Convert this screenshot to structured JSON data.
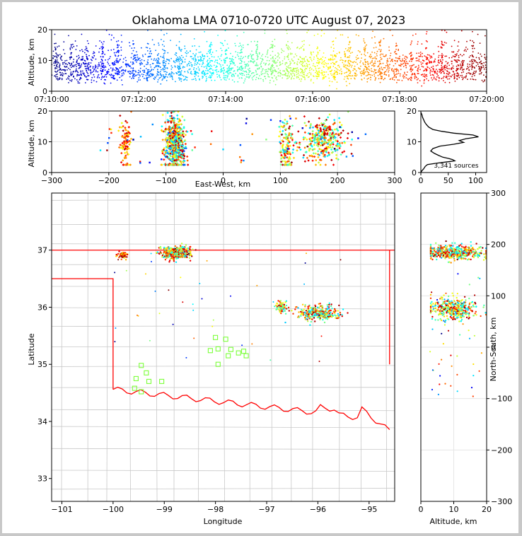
{
  "chart_data": [
    {
      "type": "scatter",
      "panel": "time-altitude",
      "title": "Oklahoma LMA 0710-0720 UTC August 07, 2023",
      "xlabel": "",
      "ylabel": "Altitude, km",
      "xlim": [
        "07:10:00",
        "07:20:00"
      ],
      "ylim": [
        0,
        20
      ],
      "xticks": [
        "07:10:00",
        "07:12:00",
        "07:14:00",
        "07:16:00",
        "07:18:00",
        "07:20:00"
      ],
      "yticks": [
        "0",
        "10",
        "20"
      ],
      "color_encoding": "time (blue → cyan → green → yellow → orange → red → dark red)",
      "point_altitude_range_km": [
        3,
        20
      ],
      "point_altitude_core_km": [
        5,
        14
      ]
    },
    {
      "type": "scatter",
      "panel": "east-west-altitude",
      "xlabel": "East-West, km",
      "ylabel": "Altitude, km",
      "xlim": [
        -300,
        300
      ],
      "ylim": [
        0,
        20
      ],
      "xticks": [
        "−300",
        "−200",
        "−100",
        "0",
        "100",
        "200",
        "300"
      ],
      "yticks": [
        "0",
        "10",
        "20"
      ],
      "grid": true,
      "clusters": [
        {
          "ew_km": -170,
          "alt_km": 10
        },
        {
          "ew_km": -85,
          "alt_km": 9
        },
        {
          "ew_km": 110,
          "alt_km": 8
        },
        {
          "ew_km": 175,
          "alt_km": 11
        }
      ]
    },
    {
      "type": "line",
      "panel": "altitude-histogram",
      "xlim": [
        0,
        120
      ],
      "ylim": [
        0,
        20
      ],
      "xticks": [
        "0",
        "50",
        "100"
      ],
      "yticks": [
        "0",
        "10",
        "20"
      ],
      "annotation": "3,341 sources",
      "profile": [
        {
          "alt": 0.0,
          "count": 0
        },
        {
          "alt": 0.6,
          "count": 2
        },
        {
          "alt": 1.2,
          "count": 5
        },
        {
          "alt": 2.0,
          "count": 8
        },
        {
          "alt": 2.6,
          "count": 12
        },
        {
          "alt": 3.0,
          "count": 28
        },
        {
          "alt": 3.4,
          "count": 45
        },
        {
          "alt": 3.8,
          "count": 62
        },
        {
          "alt": 4.2,
          "count": 58
        },
        {
          "alt": 4.6,
          "count": 50
        },
        {
          "alt": 5.0,
          "count": 40
        },
        {
          "alt": 5.6,
          "count": 32
        },
        {
          "alt": 6.2,
          "count": 25
        },
        {
          "alt": 7.0,
          "count": 18
        },
        {
          "alt": 7.8,
          "count": 22
        },
        {
          "alt": 8.6,
          "count": 35
        },
        {
          "alt": 9.2,
          "count": 60
        },
        {
          "alt": 9.8,
          "count": 78
        },
        {
          "alt": 10.4,
          "count": 70
        },
        {
          "alt": 11.0,
          "count": 82
        },
        {
          "alt": 11.6,
          "count": 105
        },
        {
          "alt": 12.2,
          "count": 95
        },
        {
          "alt": 12.8,
          "count": 60
        },
        {
          "alt": 13.4,
          "count": 38
        },
        {
          "alt": 14.0,
          "count": 22
        },
        {
          "alt": 14.8,
          "count": 14
        },
        {
          "alt": 15.6,
          "count": 10
        },
        {
          "alt": 16.4,
          "count": 7
        },
        {
          "alt": 17.2,
          "count": 5
        },
        {
          "alt": 18.0,
          "count": 3
        },
        {
          "alt": 18.8,
          "count": 2
        },
        {
          "alt": 19.6,
          "count": 0
        }
      ]
    },
    {
      "type": "scatter",
      "panel": "plan-view-map",
      "xlabel": "Longitude",
      "ylabel": "Latitude",
      "xlim": [
        -101.2,
        -94.5
      ],
      "ylim": [
        32.6,
        38.0
      ],
      "xticks": [
        "−101",
        "−100",
        "−99",
        "−98",
        "−97",
        "−96",
        "−95"
      ],
      "yticks": [
        "33",
        "34",
        "35",
        "36",
        "37"
      ],
      "map_features": [
        "county boundaries (gray)",
        "state boundary (red)"
      ],
      "station_marker": "green open square",
      "stations": [
        {
          "lon": -99.45,
          "lat": 34.98
        },
        {
          "lon": -99.35,
          "lat": 34.85
        },
        {
          "lon": -99.55,
          "lat": 34.75
        },
        {
          "lon": -99.3,
          "lat": 34.7
        },
        {
          "lon": -99.58,
          "lat": 34.58
        },
        {
          "lon": -99.45,
          "lat": 34.52
        },
        {
          "lon": -99.05,
          "lat": 34.7
        },
        {
          "lon": -98.0,
          "lat": 35.47
        },
        {
          "lon": -97.8,
          "lat": 35.44
        },
        {
          "lon": -98.1,
          "lat": 35.24
        },
        {
          "lon": -97.95,
          "lat": 35.27
        },
        {
          "lon": -97.7,
          "lat": 35.26
        },
        {
          "lon": -97.75,
          "lat": 35.15
        },
        {
          "lon": -97.95,
          "lat": 35.0
        },
        {
          "lon": -97.55,
          "lat": 35.2
        },
        {
          "lon": -97.45,
          "lat": 35.23
        },
        {
          "lon": -97.4,
          "lat": 35.15
        }
      ],
      "clusters": [
        {
          "lon": -98.75,
          "lat": 36.95
        },
        {
          "lon": -99.8,
          "lat": 36.92
        },
        {
          "lon": -96.0,
          "lat": 35.9
        },
        {
          "lon": -96.7,
          "lat": 36.0
        }
      ]
    },
    {
      "type": "scatter",
      "panel": "altitude-north-south",
      "xlabel": "Altitude, km",
      "ylabel": "North-South, km",
      "xlim": [
        0,
        20
      ],
      "ylim": [
        -300,
        300
      ],
      "xticks": [
        "0",
        "10",
        "20"
      ],
      "yticks": [
        "−300",
        "−200",
        "−100",
        "0",
        "100",
        "200",
        "300"
      ],
      "grid": true,
      "clusters": [
        {
          "alt_km": 10,
          "ns_km": 185
        },
        {
          "alt_km": 10,
          "ns_km": 75
        }
      ]
    }
  ],
  "colors": {
    "state_boundary": "#ff0000",
    "county_boundary": "#c8c8c8",
    "station": "#7cff3a",
    "grid": "#e6e6e6"
  }
}
